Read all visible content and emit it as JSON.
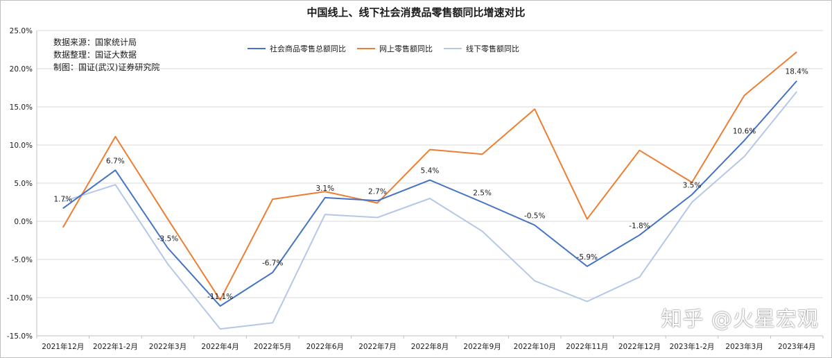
{
  "chart_data": {
    "type": "line",
    "title": "中国线上、线下社会消费品零售额同比增速对比",
    "notes": [
      "数据来源：国家统计局",
      "数据整理：国证大数据",
      "制图：国证(武汉)证券研究院"
    ],
    "categories": [
      "2021年12月",
      "2022年1-2月",
      "2022年3月",
      "2022年4月",
      "2022年5月",
      "2022年6月",
      "2022年7月",
      "2022年8月",
      "2022年9月",
      "2022年10月",
      "2022年11月",
      "2022年12月",
      "2023年1-2月",
      "2023年3月",
      "2023年4月"
    ],
    "ylim": [
      -15,
      25
    ],
    "yticks": [
      "-15.0%",
      "-10.0%",
      "-5.0%",
      "0.0%",
      "5.0%",
      "10.0%",
      "15.0%",
      "20.0%",
      "25.0%"
    ],
    "grid": true,
    "legend_position": "top",
    "series": [
      {
        "name": "社会商品零售总额同比",
        "color": "#4472c4",
        "values": [
          1.7,
          6.7,
          -3.5,
          -11.1,
          -6.7,
          3.1,
          2.7,
          5.4,
          2.5,
          -0.5,
          -5.9,
          -1.8,
          3.5,
          10.6,
          18.4
        ],
        "labels": [
          "1.7%",
          "6.7%",
          "-3.5%",
          "-11.1%",
          "-6.7%",
          "3.1%",
          "2.7%",
          "5.4%",
          "2.5%",
          "-0.5%",
          "-5.9%",
          "-1.8%",
          "3.5%",
          "10.6%",
          "18.4%"
        ]
      },
      {
        "name": "网上零售额同比",
        "color": "#ed7d31",
        "values": [
          -0.8,
          11.1,
          0.3,
          -10.3,
          2.9,
          3.9,
          2.4,
          9.4,
          8.8,
          14.7,
          0.3,
          9.3,
          5.1,
          16.5,
          22.2
        ]
      },
      {
        "name": "线下零售额同比",
        "color": "#b4c7e7",
        "values": [
          2.6,
          4.8,
          -5.6,
          -14.1,
          -13.3,
          0.9,
          0.5,
          3.0,
          -1.3,
          -7.8,
          -10.5,
          -7.3,
          2.5,
          8.5,
          17.0
        ]
      }
    ]
  },
  "watermark": "知乎 @火星宏观"
}
